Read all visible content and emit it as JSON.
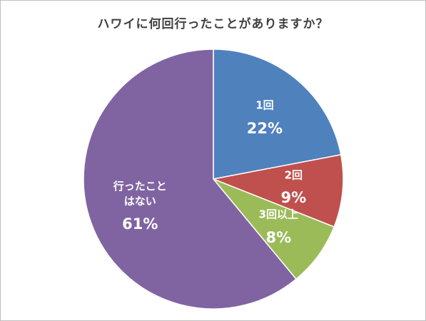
{
  "chart_data": {
    "type": "pie",
    "title": "ハワイに何回行ったことがありますか？",
    "categories": [
      "1回",
      "2回",
      "3回以上",
      "行ったことはない"
    ],
    "values": [
      22,
      9,
      8,
      61
    ],
    "value_labels": [
      "22%",
      "9%",
      "8%",
      "61%"
    ],
    "colors": [
      "#4f81bd",
      "#c0504d",
      "#9bbb59",
      "#8064a2"
    ]
  }
}
